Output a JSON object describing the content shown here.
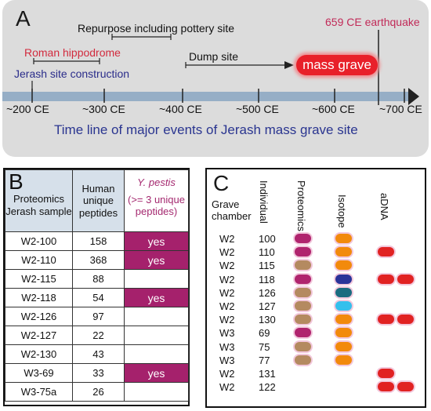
{
  "panel_a": {
    "letter": "A",
    "events": {
      "earthquake": "659 CE earthquake",
      "repurpose": "Repurpose including pottery site",
      "hippodrome": "Roman hippodrome",
      "dump": "Dump site",
      "construction": "Jerash site construction",
      "mass_grave": "mass grave"
    },
    "ticks": [
      "~200 CE",
      "~300 CE",
      "~400 CE",
      "~500 CE",
      "~600 CE",
      "~700 CE"
    ],
    "title": "Time line of major events of Jerash mass grave site",
    "colors": {
      "axis_bar": "#96aec6",
      "mass_grave": "#e8202a",
      "earthquake": "#c12a58",
      "hippodrome": "#d22b3e",
      "construction": "#2a2c8a"
    }
  },
  "panel_b": {
    "letter": "B",
    "headers": {
      "sample": "Proteomics Jerash sample",
      "peptides": "Human unique peptides",
      "pestis": "Y. pestis",
      "pestis_note": "(>= 3 unique peptides)"
    },
    "rows": [
      {
        "sample": "W2-100",
        "peptides": "158",
        "pestis": "yes"
      },
      {
        "sample": "W2-110",
        "peptides": "368",
        "pestis": "yes"
      },
      {
        "sample": "W2-115",
        "peptides": "88",
        "pestis": ""
      },
      {
        "sample": "W2-118",
        "peptides": "54",
        "pestis": "yes"
      },
      {
        "sample": "W2-126",
        "peptides": "97",
        "pestis": ""
      },
      {
        "sample": "W2-127",
        "peptides": "22",
        "pestis": ""
      },
      {
        "sample": "W2-130",
        "peptides": "43",
        "pestis": ""
      },
      {
        "sample": "W3-69",
        "peptides": "33",
        "pestis": "yes"
      },
      {
        "sample": "W3-75a",
        "peptides": "26",
        "pestis": ""
      }
    ]
  },
  "panel_c": {
    "letter": "C",
    "headers": {
      "grave": "Grave chamber",
      "individual": "Individual",
      "proteomics": "Proteomics",
      "isotope": "Isotope",
      "adna": "aDNA"
    },
    "rows": [
      {
        "grave": "W2",
        "id": "100",
        "proteomics": "magenta",
        "isotope": "orange",
        "adna": []
      },
      {
        "grave": "W2",
        "id": "110",
        "proteomics": "magenta",
        "isotope": "orange",
        "adna": [
          "red"
        ]
      },
      {
        "grave": "W2",
        "id": "115",
        "proteomics": "tan",
        "isotope": "orange",
        "adna": []
      },
      {
        "grave": "W2",
        "id": "118",
        "proteomics": "magenta",
        "isotope": "navy",
        "adna": [
          "red",
          "red"
        ]
      },
      {
        "grave": "W2",
        "id": "126",
        "proteomics": "tan",
        "isotope": "teal",
        "adna": []
      },
      {
        "grave": "W2",
        "id": "127",
        "proteomics": "tan",
        "isotope": "cyan",
        "adna": []
      },
      {
        "grave": "W2",
        "id": "130",
        "proteomics": "tan",
        "isotope": "orange",
        "adna": [
          "red",
          "red"
        ]
      },
      {
        "grave": "W3",
        "id": "69",
        "proteomics": "magenta",
        "isotope": "orange",
        "adna": []
      },
      {
        "grave": "W3",
        "id": "75",
        "proteomics": "tan",
        "isotope": "orange",
        "adna": []
      },
      {
        "grave": "W3",
        "id": "77",
        "proteomics": "tan",
        "isotope": "orange",
        "adna": []
      },
      {
        "grave": "W2",
        "id": "131",
        "proteomics": "",
        "isotope": "",
        "adna": [
          "red"
        ]
      },
      {
        "grave": "W2",
        "id": "122",
        "proteomics": "",
        "isotope": "",
        "adna": [
          "red",
          "red"
        ]
      }
    ],
    "colors": {
      "magenta": "#b0246e",
      "tan": "#b48a60",
      "orange": "#f28a0c",
      "navy": "#2a3399",
      "teal": "#1b6c80",
      "cyan": "#34c0ec",
      "red": "#e12222"
    }
  }
}
